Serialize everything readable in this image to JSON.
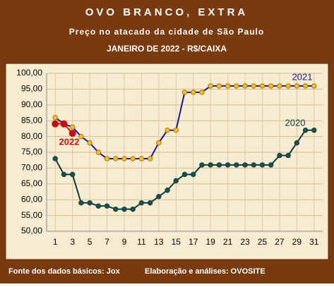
{
  "chart_data": {
    "type": "line",
    "title": "OVO BRANCO, EXTRA",
    "subtitle": "Preço no atacado da cidade de São Paulo",
    "period": "JANEIRO DE 2022 - R$/CAIXA",
    "source": "Fonte dos dados básicos: Jox",
    "credits": "Elaboração e análises: OVOSITE",
    "x": [
      1,
      2,
      3,
      4,
      5,
      6,
      7,
      8,
      9,
      10,
      11,
      12,
      13,
      14,
      15,
      16,
      17,
      18,
      19,
      20,
      21,
      22,
      23,
      24,
      25,
      26,
      27,
      28,
      29,
      30,
      31
    ],
    "xlim": [
      0,
      32
    ],
    "xticks": [
      1,
      3,
      5,
      7,
      9,
      11,
      13,
      15,
      17,
      19,
      21,
      23,
      25,
      27,
      29,
      31
    ],
    "ylim": [
      50,
      100
    ],
    "yticks": [
      {
        "value": 50,
        "label": "50,00"
      },
      {
        "value": 55,
        "label": "55,00"
      },
      {
        "value": 60,
        "label": "60,00"
      },
      {
        "value": 65,
        "label": "65,00"
      },
      {
        "value": 70,
        "label": "70,00"
      },
      {
        "value": 75,
        "label": "75,00"
      },
      {
        "value": 80,
        "label": "80,00"
      },
      {
        "value": 85,
        "label": "85,00"
      },
      {
        "value": 90,
        "label": "90,00"
      },
      {
        "value": 95,
        "label": "95,00"
      },
      {
        "value": 100,
        "label": "100,00"
      }
    ],
    "grid": true,
    "series": [
      {
        "name": "2020",
        "color": "#0d3b3b",
        "values": [
          73,
          68,
          68,
          59,
          59,
          58,
          58,
          57,
          57,
          57,
          59,
          59,
          61,
          63,
          66,
          68,
          68,
          71,
          71,
          71,
          71,
          71,
          71,
          71,
          71,
          71,
          74,
          74,
          78,
          82,
          82
        ]
      },
      {
        "name": "2021",
        "color": "#1a1a8c",
        "values": [
          86,
          84,
          83,
          80,
          78,
          75,
          73,
          73,
          73,
          73,
          73,
          73,
          78,
          82,
          82,
          94,
          94,
          94,
          96,
          96,
          96,
          96,
          96,
          96,
          96,
          96,
          96,
          96,
          96,
          96,
          96
        ]
      },
      {
        "name": "2022",
        "color": "#cc1111",
        "values": [
          84,
          84,
          81,
          null,
          null,
          null,
          null,
          null,
          null,
          null,
          null,
          null,
          null,
          null,
          null,
          null,
          null,
          null,
          null,
          null,
          null,
          null,
          null,
          null,
          null,
          null,
          null,
          null,
          null,
          null,
          null
        ]
      }
    ]
  }
}
